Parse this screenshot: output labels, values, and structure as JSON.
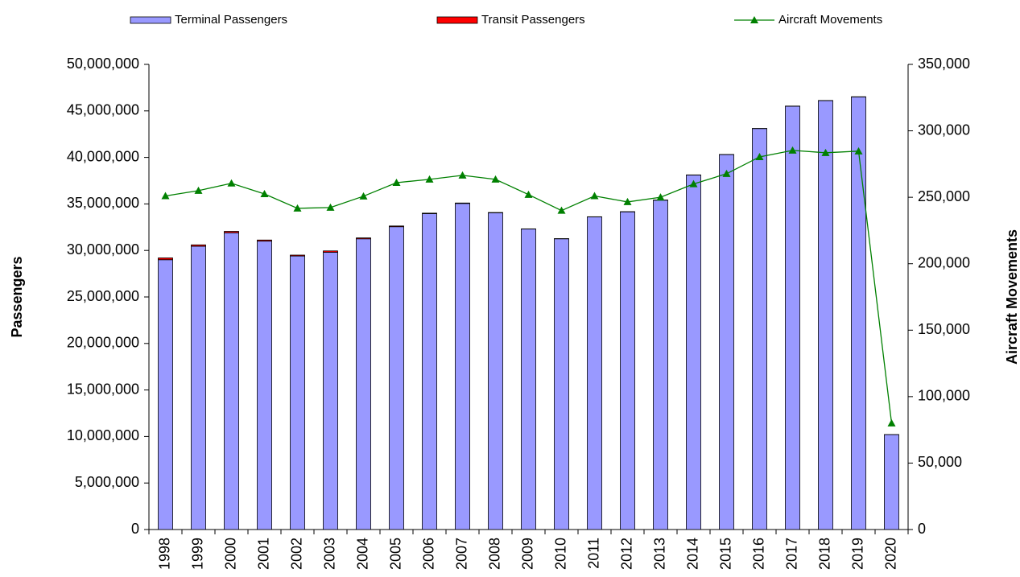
{
  "chart_data": {
    "type": "bar",
    "stacked": true,
    "y_label": "Passengers",
    "y2_label": "Aircraft Movements",
    "categories": [
      "1998",
      "1999",
      "2000",
      "2001",
      "2002",
      "2003",
      "2004",
      "2005",
      "2006",
      "2007",
      "2008",
      "2009",
      "2010",
      "2011",
      "2012",
      "2013",
      "2014",
      "2015",
      "2016",
      "2017",
      "2018",
      "2019",
      "2020"
    ],
    "series": [
      {
        "name": "Terminal Passengers",
        "color": "#9999ff",
        "type": "bar",
        "values": [
          29000000,
          30450000,
          31900000,
          31000000,
          29400000,
          29800000,
          31250000,
          32550000,
          33950000,
          35050000,
          34050000,
          32300000,
          31250000,
          33600000,
          34150000,
          35400000,
          38100000,
          40300000,
          43100000,
          45500000,
          46100000,
          46500000,
          10200000
        ]
      },
      {
        "name": "Transit Passengers",
        "color": "#ff0000",
        "type": "bar",
        "values": [
          200000,
          150000,
          150000,
          120000,
          100000,
          150000,
          100000,
          80000,
          60000,
          50000,
          30000,
          20000,
          20000,
          20000,
          20000,
          20000,
          20000,
          20000,
          20000,
          20000,
          20000,
          20000,
          10000
        ]
      },
      {
        "name": "Aircraft Movements",
        "color": "#008000",
        "type": "line",
        "axis": "y2",
        "values": [
          251000,
          255000,
          260500,
          252500,
          241700,
          242300,
          250800,
          261000,
          263500,
          266500,
          263500,
          252000,
          240000,
          251000,
          246500,
          250000,
          260000,
          267700,
          280400,
          285300,
          283500,
          284700,
          80000
        ]
      }
    ],
    "ylim": [
      0,
      50000000
    ],
    "yticks": [
      0,
      {
        "value": 5000000,
        "label": "5,000,000"
      },
      {
        "value": 10000000,
        "label": "10,000,000"
      },
      {
        "value": 15000000,
        "label": "15,000,000"
      },
      {
        "value": 20000000,
        "label": "20,000,000"
      },
      {
        "value": 25000000,
        "label": "25,000,000"
      },
      {
        "value": 30000000,
        "label": "30,000,000"
      },
      {
        "value": 35000000,
        "label": "35,000,000"
      },
      {
        "value": 40000000,
        "label": "40,000,000"
      },
      {
        "value": 45000000,
        "label": "45,000,000"
      },
      {
        "value": 50000000,
        "label": "50,000,000"
      }
    ],
    "y2lim": [
      0,
      350000
    ],
    "y2ticks": [
      0,
      {
        "value": 50000,
        "label": "50,000"
      },
      {
        "value": 100000,
        "label": "100,000"
      },
      {
        "value": 150000,
        "label": "150,000"
      },
      {
        "value": 200000,
        "label": "200,000"
      },
      {
        "value": 250000,
        "label": "250,000"
      },
      {
        "value": 300000,
        "label": "300,000"
      },
      {
        "value": 350000,
        "label": "350,000"
      }
    ],
    "legend": "top"
  }
}
